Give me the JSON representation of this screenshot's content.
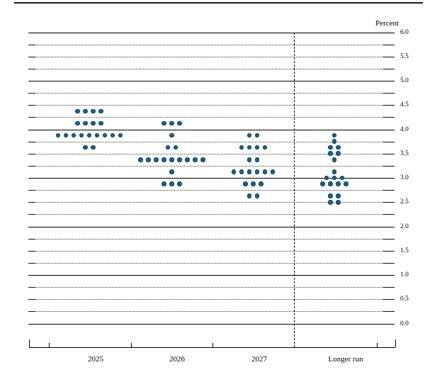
{
  "chart_data": {
    "type": "scatter",
    "subtype": "fomc_dot_plot",
    "unit_label": "Percent",
    "categories": [
      "2025",
      "2026",
      "2027",
      "Longer run"
    ],
    "y_axis": {
      "min": 0.0,
      "max": 6.0,
      "grid_step": 0.25,
      "solid_line_step": 1.0,
      "label_step": 0.5,
      "tick_labels": [
        "6.0",
        "5.5",
        "5.0",
        "4.5",
        "4.0",
        "3.5",
        "3.0",
        "2.5",
        "2.0",
        "1.5",
        "1.0",
        "0.5",
        "0.0"
      ]
    },
    "series": [
      {
        "name": "2025",
        "dots": [
          {
            "value": 4.375,
            "count": 4
          },
          {
            "value": 4.125,
            "count": 4
          },
          {
            "value": 3.875,
            "count": 9
          },
          {
            "value": 3.625,
            "count": 2
          }
        ]
      },
      {
        "name": "2026",
        "dots": [
          {
            "value": 4.125,
            "count": 3
          },
          {
            "value": 3.875,
            "count": 1
          },
          {
            "value": 3.625,
            "count": 2
          },
          {
            "value": 3.375,
            "count": 9
          },
          {
            "value": 3.125,
            "count": 1
          },
          {
            "value": 2.875,
            "count": 3
          }
        ]
      },
      {
        "name": "2027",
        "dots": [
          {
            "value": 3.875,
            "count": 2
          },
          {
            "value": 3.625,
            "count": 4
          },
          {
            "value": 3.375,
            "count": 2
          },
          {
            "value": 3.125,
            "count": 6
          },
          {
            "value": 2.875,
            "count": 3
          },
          {
            "value": 2.625,
            "count": 2
          }
        ]
      },
      {
        "name": "Longer run",
        "dots": [
          {
            "value": 3.875,
            "count": 1
          },
          {
            "value": 3.75,
            "count": 1
          },
          {
            "value": 3.625,
            "count": 2
          },
          {
            "value": 3.5,
            "count": 2
          },
          {
            "value": 3.375,
            "count": 1
          },
          {
            "value": 3.125,
            "count": 1
          },
          {
            "value": 3.0,
            "count": 3
          },
          {
            "value": 2.875,
            "count": 4
          },
          {
            "value": 2.625,
            "count": 2
          },
          {
            "value": 2.5,
            "count": 2
          }
        ]
      }
    ],
    "colors": {
      "dot_fill": "#1e6286",
      "dot_edge": "#0f4261",
      "grid": "#000000"
    },
    "separator": {
      "type": "vertical_dashed",
      "before_category": "Longer run"
    }
  }
}
